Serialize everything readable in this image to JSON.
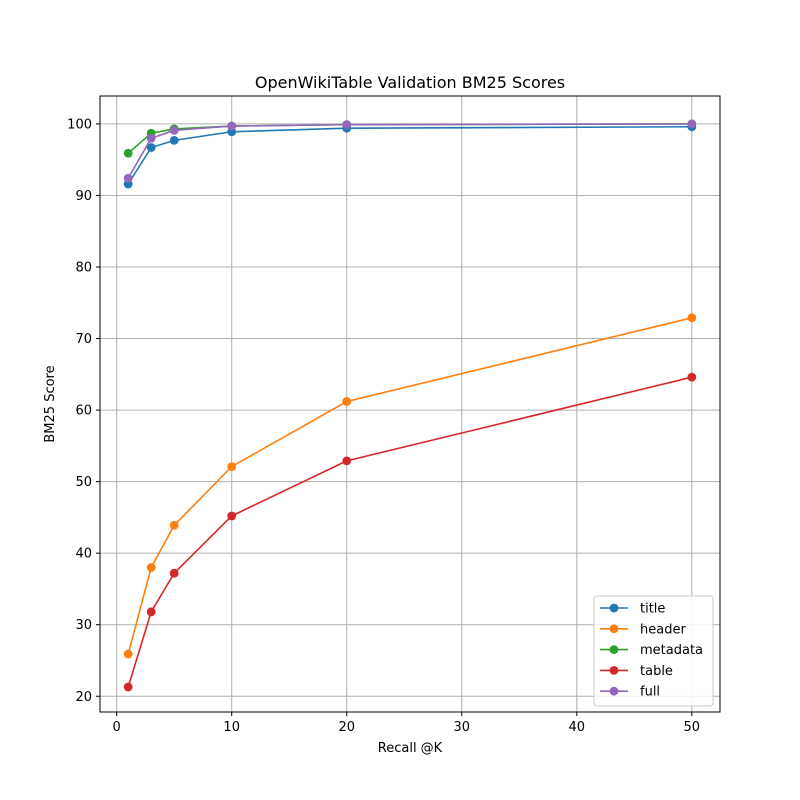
{
  "chart_data": {
    "type": "line",
    "title": "OpenWikiTable Validation BM25 Scores",
    "xlabel": "Recall @K",
    "ylabel": "BM25 Score",
    "xlim": [
      -1.45,
      52.45
    ],
    "ylim": [
      17.8,
      103.9
    ],
    "xticks": [
      0,
      10,
      20,
      30,
      40,
      50
    ],
    "yticks": [
      20,
      30,
      40,
      50,
      60,
      70,
      80,
      90,
      100
    ],
    "grid": true,
    "legend_position": "lower-right",
    "x": [
      1,
      3,
      5,
      10,
      20,
      50
    ],
    "series": [
      {
        "name": "title",
        "color": "#1f77b4",
        "values": [
          91.6,
          96.7,
          97.7,
          98.9,
          99.4,
          99.6
        ]
      },
      {
        "name": "header",
        "color": "#ff7f0e",
        "values": [
          25.9,
          38.0,
          43.9,
          52.1,
          61.2,
          72.9
        ]
      },
      {
        "name": "metadata",
        "color": "#2ca02c",
        "values": [
          95.9,
          98.7,
          99.3,
          99.7,
          99.9,
          100.0
        ]
      },
      {
        "name": "table",
        "color": "#d62728",
        "values": [
          21.3,
          31.8,
          37.2,
          45.2,
          52.9,
          64.6
        ]
      },
      {
        "name": "full",
        "color": "#9467bd",
        "values": [
          92.4,
          98.0,
          99.1,
          99.7,
          99.9,
          100.0
        ]
      }
    ]
  }
}
